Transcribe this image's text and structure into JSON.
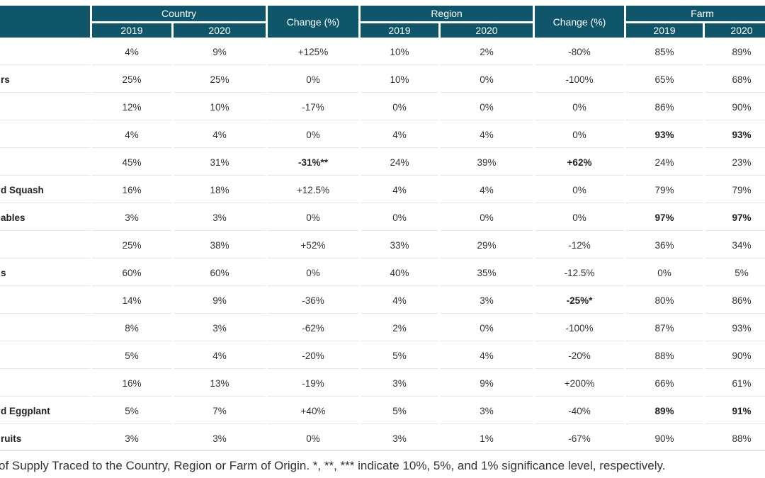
{
  "headers": {
    "country": "Country",
    "change1": "Change (%)",
    "region": "Region",
    "change2": "Change (%)",
    "farm": "Farm",
    "years": [
      "2019",
      "2020",
      "2019",
      "2020",
      "2019",
      "2020"
    ]
  },
  "rows": [
    {
      "label": "",
      "c19": "4%",
      "c20": "9%",
      "cchg": "+125%",
      "r19": "10%",
      "r20": "2%",
      "rchg": "-80%",
      "f19": "85%",
      "f20": "89%"
    },
    {
      "label": "rs",
      "c19": "25%",
      "c20": "25%",
      "cchg": "0%",
      "r19": "10%",
      "r20": "0%",
      "rchg": "-100%",
      "f19": "65%",
      "f20": "68%"
    },
    {
      "label": "",
      "c19": "12%",
      "c20": "10%",
      "cchg": "-17%",
      "r19": "0%",
      "r20": "0%",
      "rchg": "0%",
      "f19": "86%",
      "f20": "90%"
    },
    {
      "label": "",
      "c19": "4%",
      "c20": "4%",
      "cchg": "0%",
      "r19": "4%",
      "r20": "4%",
      "rchg": "0%",
      "f19": "93%",
      "f20": "93%"
    },
    {
      "label": "",
      "c19": "45%",
      "c20": "31%",
      "cchg": "-31%**",
      "r19": "24%",
      "r20": "39%",
      "rchg": "+62%",
      "f19": "24%",
      "f20": "23%"
    },
    {
      "label": "d Squash",
      "c19": "16%",
      "c20": "18%",
      "cchg": "+12.5%",
      "r19": "4%",
      "r20": "4%",
      "rchg": "0%",
      "f19": "79%",
      "f20": "79%"
    },
    {
      "label": "ables",
      "c19": "3%",
      "c20": "3%",
      "cchg": "0%",
      "r19": "0%",
      "r20": "0%",
      "rchg": "0%",
      "f19": "97%",
      "f20": "97%"
    },
    {
      "label": "",
      "c19": "25%",
      "c20": "38%",
      "cchg": "+52%",
      "r19": "33%",
      "r20": "29%",
      "rchg": "-12%",
      "f19": "36%",
      "f20": "34%"
    },
    {
      "label": "s",
      "c19": "60%",
      "c20": "60%",
      "cchg": "0%",
      "r19": "40%",
      "r20": "35%",
      "rchg": "-12.5%",
      "f19": "0%",
      "f20": "5%"
    },
    {
      "label": "",
      "c19": "14%",
      "c20": "9%",
      "cchg": "-36%",
      "r19": "4%",
      "r20": "3%",
      "rchg": "-25%*",
      "f19": "80%",
      "f20": "86%"
    },
    {
      "label": "",
      "c19": "8%",
      "c20": "3%",
      "cchg": "-62%",
      "r19": "2%",
      "r20": "0%",
      "rchg": "-100%",
      "f19": "87%",
      "f20": "93%"
    },
    {
      "label": "",
      "c19": "5%",
      "c20": "4%",
      "cchg": "-20%",
      "r19": "5%",
      "r20": "4%",
      "rchg": "-20%",
      "f19": "88%",
      "f20": "90%"
    },
    {
      "label": "",
      "c19": "16%",
      "c20": "13%",
      "cchg": "-19%",
      "r19": "3%",
      "r20": "9%",
      "rchg": "+200%",
      "f19": "66%",
      "f20": "61%"
    },
    {
      "label": "d Eggplant",
      "c19": "5%",
      "c20": "7%",
      "cchg": "+40%",
      "r19": "5%",
      "r20": "3%",
      "rchg": "-40%",
      "f19": "89%",
      "f20": "91%"
    },
    {
      "label": "ruits",
      "c19": "3%",
      "c20": "3%",
      "cchg": "0%",
      "r19": "3%",
      "r20": "1%",
      "rchg": "-67%",
      "f19": "90%",
      "f20": "88%"
    }
  ],
  "footnote": "of Supply Traced to the Country, Region or Farm of Origin.  *, **, *** indicate 10%, 5%, and 1% significance level, respectively.",
  "colors": {
    "header_bg": "#10566a",
    "header_text": "#ffffff",
    "body_text": "#333333"
  }
}
